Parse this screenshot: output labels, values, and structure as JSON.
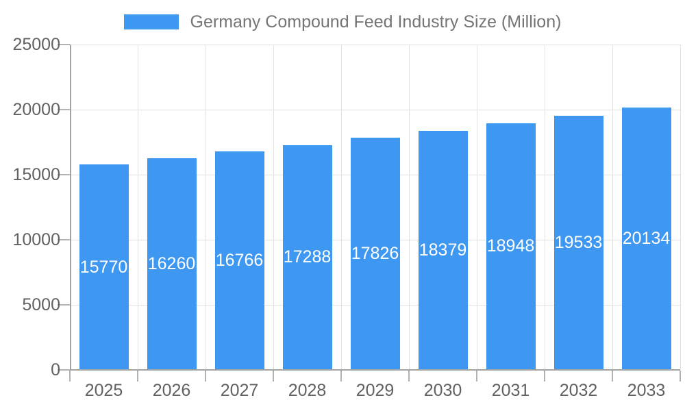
{
  "chart_data": {
    "type": "bar",
    "title": "Germany Compound Feed Industry Size (Million)",
    "legend": [
      {
        "label": "Germany Compound Feed Industry Size (Million)"
      }
    ],
    "legend_position": "top",
    "categories": [
      "2025",
      "2026",
      "2027",
      "2028",
      "2029",
      "2030",
      "2031",
      "2032",
      "2033"
    ],
    "series": [
      {
        "name": "Germany Compound Feed Industry Size (Million)",
        "values": [
          15770,
          16260,
          16766,
          17288,
          17826,
          18379,
          18948,
          19533,
          20134
        ]
      }
    ],
    "bar_labels": [
      "15770",
      "16260",
      "16766",
      "17288",
      "17826",
      "18379",
      "18948",
      "19533",
      "20134"
    ],
    "xlabel": "",
    "ylabel": "",
    "ylim": [
      0,
      25000
    ],
    "yticks": [
      0,
      5000,
      10000,
      15000,
      20000,
      25000
    ],
    "ytick_labels": [
      "0",
      "5000",
      "10000",
      "15000",
      "20000",
      "25000"
    ],
    "grid": true,
    "colors": {
      "bar": "#3e97f0",
      "grid": "#e2e2e2",
      "axis": "#a3a3a3",
      "tick": "#b3b3b3",
      "axis_label": "#616161",
      "legend_text": "#757575",
      "bar_label": "#ffffff",
      "background": "#ffffff"
    }
  }
}
